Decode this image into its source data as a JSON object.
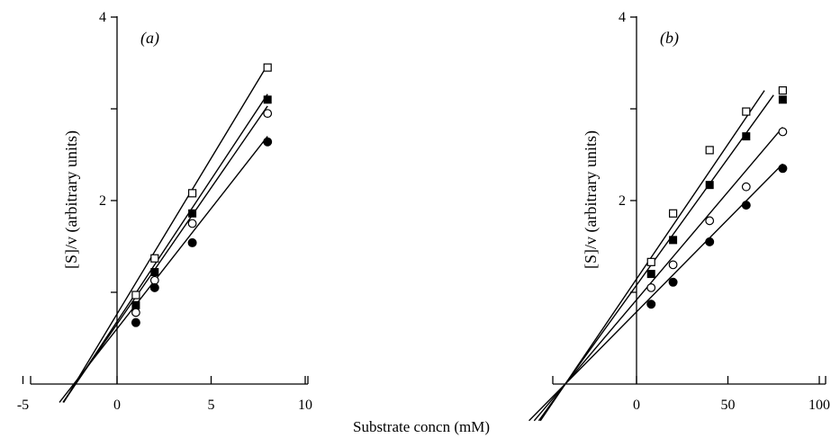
{
  "xlabel_common": "Substrate concn (mM)",
  "chart_data": [
    {
      "type": "scatter",
      "panel_label": "(a)",
      "ylabel": "[S]/v (arbitrary units)",
      "xlabel": "",
      "xlim": [
        -5,
        10
      ],
      "ylim": [
        0,
        4
      ],
      "xticks": [
        -5,
        0,
        5,
        10
      ],
      "xtick_labels": [
        "-5",
        "0",
        "5",
        "10"
      ],
      "yticks": [
        1,
        2,
        3,
        4
      ],
      "ytick_labels": [
        "",
        "2",
        "",
        "4"
      ],
      "grid": false,
      "legend": "none",
      "series": [
        {
          "marker": "open-square",
          "x": [
            1,
            2,
            4,
            8
          ],
          "y": [
            0.97,
            1.37,
            2.08,
            3.45
          ],
          "line": {
            "x": [
              -2.25,
              8
            ],
            "y": [
              0,
              3.48
            ]
          }
        },
        {
          "marker": "filled-square",
          "x": [
            1,
            2,
            4,
            8
          ],
          "y": [
            0.86,
            1.22,
            1.86,
            3.1
          ],
          "line": {
            "x": [
              -2.2,
              8
            ],
            "y": [
              0,
              3.16
            ]
          }
        },
        {
          "marker": "open-circle",
          "x": [
            1,
            2,
            4,
            8
          ],
          "y": [
            0.78,
            1.13,
            1.75,
            2.95
          ],
          "line": {
            "x": [
              -2.2,
              8
            ],
            "y": [
              0,
              3.03
            ]
          }
        },
        {
          "marker": "filled-circle",
          "x": [
            1,
            2,
            4,
            8
          ],
          "y": [
            0.67,
            1.05,
            1.54,
            2.64
          ],
          "line": {
            "x": [
              -2.3,
              8
            ],
            "y": [
              0,
              2.7
            ]
          }
        }
      ]
    },
    {
      "type": "scatter",
      "panel_label": "(b)",
      "ylabel": "[S]/v (arbitrary units)",
      "xlabel": "",
      "xlim": [
        -40,
        100
      ],
      "ylim": [
        0,
        4
      ],
      "xticks": [
        0,
        50,
        100
      ],
      "xtick_labels": [
        "0",
        "50",
        "100"
      ],
      "yticks": [
        1,
        2,
        3,
        4
      ],
      "ytick_labels": [
        "",
        "2",
        "",
        "4"
      ],
      "grid": false,
      "legend": "none",
      "series": [
        {
          "marker": "open-square",
          "x": [
            8,
            20,
            40,
            60,
            80
          ],
          "y": [
            1.33,
            1.86,
            2.55,
            2.97,
            3.2
          ],
          "line": {
            "x": [
              -39,
              70
            ],
            "y": [
              0,
              3.2
            ]
          }
        },
        {
          "marker": "filled-square",
          "x": [
            8,
            20,
            40,
            60,
            80
          ],
          "y": [
            1.2,
            1.57,
            2.17,
            2.7,
            3.1
          ],
          "line": {
            "x": [
              -39,
              75
            ],
            "y": [
              0,
              3.15
            ]
          }
        },
        {
          "marker": "open-circle",
          "x": [
            8,
            20,
            40,
            60,
            80
          ],
          "y": [
            1.05,
            1.3,
            1.78,
            2.15,
            2.75
          ],
          "line": {
            "x": [
              -39,
              80
            ],
            "y": [
              0,
              2.8
            ]
          }
        },
        {
          "marker": "filled-circle",
          "x": [
            8,
            20,
            40,
            60,
            80
          ],
          "y": [
            0.87,
            1.11,
            1.55,
            1.95,
            2.35
          ],
          "line": {
            "x": [
              -39,
              80
            ],
            "y": [
              0,
              2.4
            ]
          }
        }
      ]
    }
  ]
}
